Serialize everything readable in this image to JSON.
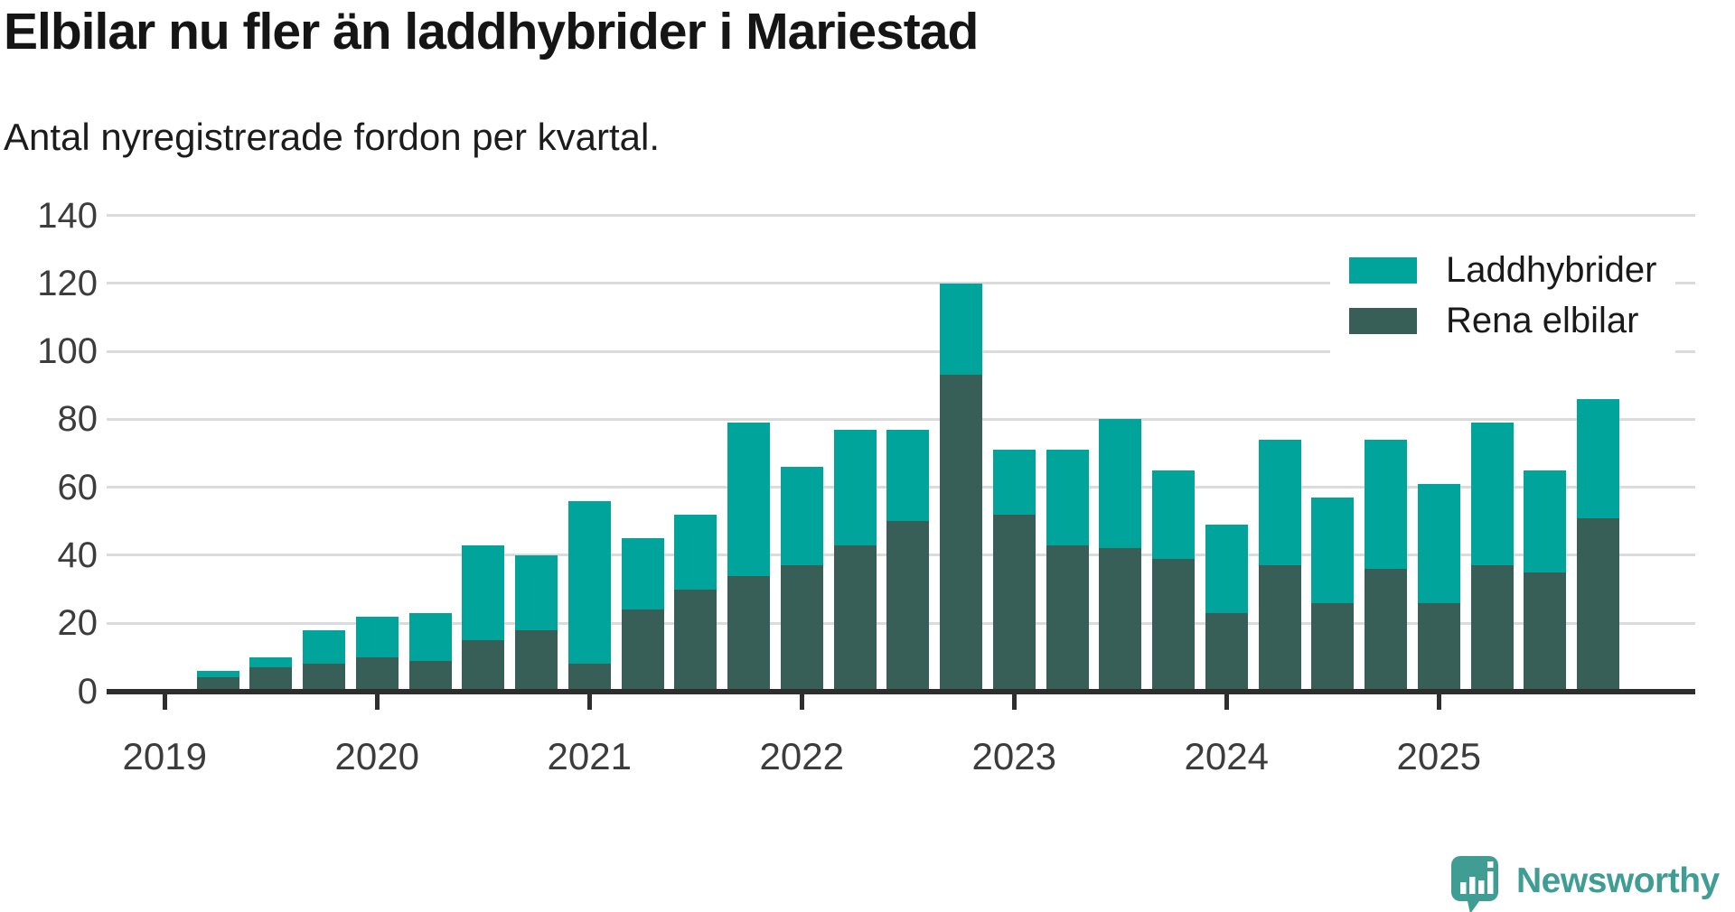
{
  "title": "Elbilar nu fler än laddhybrider i Mariestad",
  "subtitle": "Antal nyregistrerade fordon per kvartal.",
  "legend": {
    "items": [
      {
        "label": "Laddhybrider",
        "color": "#00a49b"
      },
      {
        "label": "Rena elbilar",
        "color": "#375f58"
      }
    ]
  },
  "chart_data": {
    "type": "bar",
    "stacked": true,
    "title": "Elbilar nu fler än laddhybrider i Mariestad",
    "subtitle": "Antal nyregistrerade fordon per kvartal.",
    "x": [
      "2019 Q2",
      "2019 Q3",
      "2019 Q4",
      "2020 Q1",
      "2020 Q2",
      "2020 Q3",
      "2020 Q4",
      "2021 Q1",
      "2021 Q2",
      "2021 Q3",
      "2021 Q4",
      "2022 Q1",
      "2022 Q2",
      "2022 Q3",
      "2022 Q4",
      "2023 Q1",
      "2023 Q2",
      "2023 Q3",
      "2023 Q4",
      "2024 Q1",
      "2024 Q2",
      "2024 Q3",
      "2024 Q4",
      "2025 Q1",
      "2025 Q2",
      "2025 Q3",
      "2025 Q4"
    ],
    "series": [
      {
        "name": "Rena elbilar",
        "color": "#375f58",
        "stack_order": "bottom",
        "values": [
          4,
          7,
          8,
          10,
          9,
          15,
          18,
          8,
          24,
          30,
          34,
          37,
          43,
          50,
          93,
          52,
          43,
          42,
          39,
          23,
          37,
          26,
          36,
          26,
          37,
          35,
          51
        ]
      },
      {
        "name": "Laddhybrider",
        "color": "#00a49b",
        "stack_order": "top",
        "values": [
          2,
          3,
          10,
          12,
          14,
          28,
          22,
          48,
          21,
          22,
          45,
          29,
          34,
          27,
          27,
          19,
          28,
          38,
          26,
          26,
          37,
          31,
          38,
          35,
          42,
          30,
          35
        ]
      }
    ],
    "totals": [
      6,
      10,
      18,
      22,
      23,
      43,
      40,
      56,
      45,
      52,
      79,
      66,
      77,
      77,
      120,
      71,
      71,
      80,
      65,
      49,
      74,
      57,
      74,
      61,
      79,
      65,
      86
    ],
    "x_year_ticks": [
      "2019",
      "2020",
      "2021",
      "2022",
      "2023",
      "2024",
      "2025"
    ],
    "y_ticks": [
      0,
      20,
      40,
      60,
      80,
      100,
      120,
      140
    ],
    "ylim": [
      0,
      140
    ],
    "grid": true,
    "legend_position": "upper-right"
  },
  "logo": {
    "text": "Newsworthy",
    "icon": "newsworthy-speech-bubble-bar-chart-icon",
    "color": "#3f9d93"
  },
  "colors": {
    "laddhybrider": "#00a49b",
    "rena_elbilar": "#375f58",
    "gridline": "#dbdbdb",
    "axis": "#2e2e2e",
    "tick_text": "#3c3c3c",
    "title_text": "#151515"
  }
}
